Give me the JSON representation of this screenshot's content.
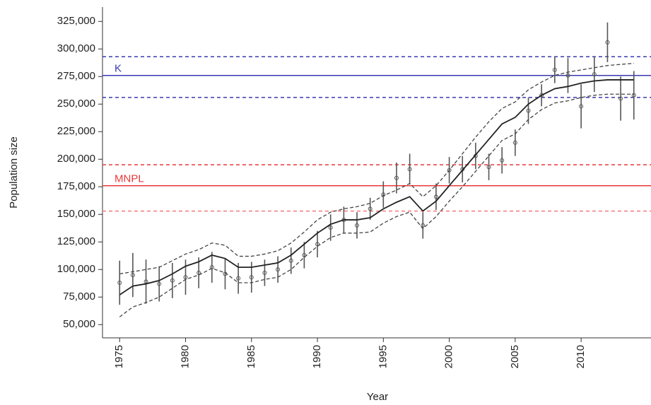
{
  "chart_data": {
    "type": "line",
    "x_label": "Year",
    "y_label": "Population size",
    "x": [
      1975,
      1976,
      1977,
      1978,
      1979,
      1980,
      1981,
      1982,
      1983,
      1984,
      1985,
      1986,
      1987,
      1988,
      1989,
      1990,
      1991,
      1992,
      1993,
      1994,
      1995,
      1996,
      1997,
      1998,
      1999,
      2000,
      2001,
      2002,
      2003,
      2004,
      2005,
      2006,
      2007,
      2008,
      2009,
      2010,
      2011,
      2012,
      2013,
      2014
    ],
    "xlim": [
      1973.7,
      2015.3
    ],
    "ylim": [
      38000,
      338000
    ],
    "xticks": [
      1975,
      1980,
      1985,
      1990,
      1995,
      2000,
      2005,
      2010
    ],
    "yticks": [
      {
        "value": 50000,
        "label": "50,000"
      },
      {
        "value": 75000,
        "label": "75,000"
      },
      {
        "value": 100000,
        "label": "100,000"
      },
      {
        "value": 125000,
        "label": "125,000"
      },
      {
        "value": 150000,
        "label": "150,000"
      },
      {
        "value": 175000,
        "label": "175,000"
      },
      {
        "value": 200000,
        "label": "200,000"
      },
      {
        "value": 225000,
        "label": "225,000"
      },
      {
        "value": 250000,
        "label": "250,000"
      },
      {
        "value": 275000,
        "label": "275,000"
      },
      {
        "value": 300000,
        "label": "300,000"
      },
      {
        "value": 325000,
        "label": "325,000"
      }
    ],
    "estimates": {
      "color": "#555555",
      "values": [
        88000,
        95000,
        89000,
        87000,
        90000,
        93000,
        97000,
        102000,
        96000,
        92000,
        93000,
        97000,
        100000,
        108000,
        113000,
        123000,
        138000,
        145000,
        140000,
        155000,
        168000,
        183000,
        191000,
        140000,
        166000,
        190000,
        191000,
        203000,
        193000,
        199000,
        215000,
        244000,
        258000,
        281000,
        276000,
        248000,
        277000,
        306000,
        255000,
        258000
      ],
      "errors": [
        20000,
        20000,
        20000,
        16000,
        16000,
        16000,
        14000,
        14000,
        14000,
        14000,
        14000,
        12000,
        12000,
        12000,
        12000,
        12000,
        12000,
        12000,
        12000,
        10000,
        12000,
        14000,
        14000,
        12000,
        12000,
        12000,
        12000,
        12000,
        12000,
        12000,
        12000,
        12000,
        10000,
        12000,
        16000,
        20000,
        16000,
        18000,
        20000,
        22000
      ]
    },
    "fit": {
      "color": "#222222",
      "values": [
        77000,
        85000,
        87000,
        90000,
        96000,
        103000,
        107000,
        113000,
        110000,
        102000,
        102000,
        104000,
        106000,
        113000,
        123000,
        133000,
        141000,
        145000,
        145000,
        147000,
        155000,
        161000,
        166000,
        153000,
        162000,
        176000,
        190000,
        204000,
        218000,
        232000,
        238000,
        250000,
        258000,
        264000,
        266000,
        269000,
        271000,
        272000,
        272000,
        272000
      ]
    },
    "fit_upper": {
      "color": "#444444",
      "values": [
        96000,
        98000,
        100000,
        102000,
        108000,
        114000,
        118000,
        124000,
        122000,
        112000,
        112000,
        114000,
        117000,
        124000,
        134000,
        145000,
        152000,
        155000,
        157000,
        160000,
        167000,
        172000,
        178000,
        166000,
        176000,
        190000,
        205000,
        220000,
        234000,
        246000,
        252000,
        263000,
        270000,
        276000,
        279000,
        281000,
        283000,
        285000,
        286000,
        287000
      ]
    },
    "fit_lower": {
      "color": "#444444",
      "values": [
        57000,
        66000,
        70000,
        75000,
        83000,
        91000,
        95000,
        101000,
        97000,
        88000,
        88000,
        91000,
        93000,
        100000,
        111000,
        121000,
        129000,
        133000,
        133000,
        134000,
        142000,
        148000,
        152000,
        137000,
        148000,
        162000,
        175000,
        189000,
        203000,
        217000,
        223000,
        236000,
        245000,
        251000,
        253000,
        256000,
        258000,
        259000,
        259000,
        259000
      ]
    },
    "reference_lines": [
      {
        "label": "K",
        "value": 276000,
        "upper": 293000,
        "lower": 256000,
        "color": "#3a3ab0",
        "lower_color": "#3a3ab0"
      },
      {
        "label": "MNPL",
        "value": 176000,
        "upper": 195000,
        "lower": 153000,
        "color": "#e8393a",
        "lower_color": "#f27a80"
      }
    ]
  }
}
